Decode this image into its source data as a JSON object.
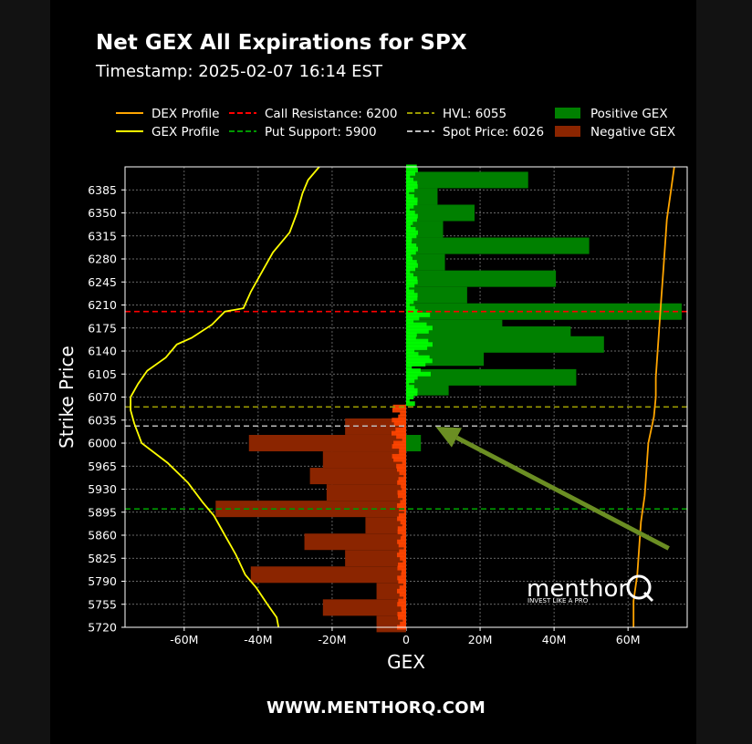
{
  "title": "Net GEX All Expirations for SPX",
  "subtitle": "Timestamp: 2025-02-07 16:14 EST",
  "footer": "WWW.MENTHORQ.COM",
  "watermark": {
    "brand": "menthor",
    "mark": "Q",
    "tagline": "INVEST LIKE A PRO"
  },
  "colors": {
    "dex": "#ffa500",
    "gex": "#ffff00",
    "call_resistance": "#ff0000",
    "put_support": "#009900",
    "hvl": "#999900",
    "spot": "#bbbbbb",
    "positive": "#008000",
    "negative": "#8b2500",
    "positive_bright": "#00ff00",
    "negative_bright": "#ff4500",
    "arrow": "#6b8e23"
  },
  "chart_data": {
    "type": "bar",
    "orientation": "horizontal",
    "xlabel": "GEX",
    "ylabel": "Strike Price",
    "xlim": [
      -76000000,
      76000000
    ],
    "ylim": [
      5720,
      6420
    ],
    "x_ticks": [
      {
        "value": -60000000,
        "label": "-60M"
      },
      {
        "value": -40000000,
        "label": "-40M"
      },
      {
        "value": -20000000,
        "label": "-20M"
      },
      {
        "value": 0,
        "label": "0"
      },
      {
        "value": 20000000,
        "label": "20M"
      },
      {
        "value": 40000000,
        "label": "40M"
      },
      {
        "value": 60000000,
        "label": "60M"
      }
    ],
    "y_ticks": [
      5720,
      5755,
      5790,
      5825,
      5860,
      5895,
      5930,
      5965,
      6000,
      6035,
      6070,
      6105,
      6140,
      6175,
      6210,
      6245,
      6280,
      6315,
      6350,
      6385
    ],
    "grid": true,
    "legend": {
      "placement": "top",
      "entries": [
        {
          "label": "DEX Profile",
          "kind": "line",
          "color": "#ffa500",
          "dash": false
        },
        {
          "label": "Call Resistance: 6200",
          "kind": "line",
          "color": "#ff0000",
          "dash": true
        },
        {
          "label": "HVL: 6055",
          "kind": "line",
          "color": "#999900",
          "dash": true
        },
        {
          "label": "Positive GEX",
          "kind": "patch",
          "color": "#008000"
        },
        {
          "label": "GEX Profile",
          "kind": "line",
          "color": "#ffff00",
          "dash": false
        },
        {
          "label": "Put Support: 5900",
          "kind": "line",
          "color": "#009900",
          "dash": true
        },
        {
          "label": "Spot Price: 6026",
          "kind": "line",
          "color": "#bbbbbb",
          "dash": true
        },
        {
          "label": "Negative GEX",
          "kind": "patch",
          "color": "#8b2500"
        }
      ]
    },
    "levels": [
      {
        "name": "Call Resistance",
        "value": 6200,
        "color": "#ff0000"
      },
      {
        "name": "HVL",
        "value": 6055,
        "color": "#999900"
      },
      {
        "name": "Spot Price",
        "value": 6026,
        "color": "#bbbbbb"
      },
      {
        "name": "Put Support",
        "value": 5900,
        "color": "#009900"
      }
    ],
    "positive_bars": [
      {
        "strike": 6400,
        "value": 33000000
      },
      {
        "strike": 6375,
        "value": 8500000
      },
      {
        "strike": 6350,
        "value": 18500000
      },
      {
        "strike": 6325,
        "value": 10000000
      },
      {
        "strike": 6300,
        "value": 49500000
      },
      {
        "strike": 6275,
        "value": 10500000
      },
      {
        "strike": 6250,
        "value": 40500000
      },
      {
        "strike": 6225,
        "value": 16500000
      },
      {
        "strike": 6200,
        "value": 74500000
      },
      {
        "strike": 6175,
        "value": 26000000
      },
      {
        "strike": 6165,
        "value": 44500000
      },
      {
        "strike": 6150,
        "value": 53500000
      },
      {
        "strike": 6130,
        "value": 21000000
      },
      {
        "strike": 6100,
        "value": 46000000
      },
      {
        "strike": 6085,
        "value": 11500000
      },
      {
        "strike": 6000,
        "value": 4000000
      }
    ],
    "negative_bars": [
      {
        "strike": 6025,
        "value": -16500000
      },
      {
        "strike": 6000,
        "value": -42500000
      },
      {
        "strike": 5975,
        "value": -22500000
      },
      {
        "strike": 5950,
        "value": -26000000
      },
      {
        "strike": 5925,
        "value": -21500000
      },
      {
        "strike": 5900,
        "value": -51500000
      },
      {
        "strike": 5875,
        "value": -11000000
      },
      {
        "strike": 5850,
        "value": -27500000
      },
      {
        "strike": 5825,
        "value": -16500000
      },
      {
        "strike": 5800,
        "value": -42000000
      },
      {
        "strike": 5775,
        "value": -8000000
      },
      {
        "strike": 5750,
        "value": -22500000
      },
      {
        "strike": 5725,
        "value": -8000000
      }
    ],
    "gex_profile": [
      {
        "strike": 6420,
        "value": -23500000
      },
      {
        "strike": 6400,
        "value": -26500000
      },
      {
        "strike": 6380,
        "value": -28000000
      },
      {
        "strike": 6350,
        "value": -29500000
      },
      {
        "strike": 6320,
        "value": -31500000
      },
      {
        "strike": 6290,
        "value": -36000000
      },
      {
        "strike": 6260,
        "value": -39000000
      },
      {
        "strike": 6230,
        "value": -42000000
      },
      {
        "strike": 6205,
        "value": -44000000
      },
      {
        "strike": 6200,
        "value": -49000000
      },
      {
        "strike": 6180,
        "value": -52500000
      },
      {
        "strike": 6160,
        "value": -58000000
      },
      {
        "strike": 6150,
        "value": -62000000
      },
      {
        "strike": 6130,
        "value": -65000000
      },
      {
        "strike": 6110,
        "value": -70000000
      },
      {
        "strike": 6090,
        "value": -72500000
      },
      {
        "strike": 6070,
        "value": -74500000
      },
      {
        "strike": 6050,
        "value": -74500000
      },
      {
        "strike": 6030,
        "value": -73500000
      },
      {
        "strike": 6000,
        "value": -71500000
      },
      {
        "strike": 5970,
        "value": -64500000
      },
      {
        "strike": 5940,
        "value": -59000000
      },
      {
        "strike": 5910,
        "value": -55000000
      },
      {
        "strike": 5890,
        "value": -52000000
      },
      {
        "strike": 5860,
        "value": -49000000
      },
      {
        "strike": 5830,
        "value": -46000000
      },
      {
        "strike": 5800,
        "value": -43500000
      },
      {
        "strike": 5780,
        "value": -40500000
      },
      {
        "strike": 5755,
        "value": -37500000
      },
      {
        "strike": 5735,
        "value": -35000000
      },
      {
        "strike": 5720,
        "value": -34500000
      }
    ],
    "dex_profile": [
      {
        "strike": 6420,
        "value": 72500000
      },
      {
        "strike": 6380,
        "value": 71500000
      },
      {
        "strike": 6340,
        "value": 70500000
      },
      {
        "strike": 6300,
        "value": 70000000
      },
      {
        "strike": 6260,
        "value": 69500000
      },
      {
        "strike": 6220,
        "value": 69000000
      },
      {
        "strike": 6180,
        "value": 68500000
      },
      {
        "strike": 6140,
        "value": 68000000
      },
      {
        "strike": 6100,
        "value": 67500000
      },
      {
        "strike": 6070,
        "value": 67500000
      },
      {
        "strike": 6040,
        "value": 67000000
      },
      {
        "strike": 6000,
        "value": 65500000
      },
      {
        "strike": 5960,
        "value": 65000000
      },
      {
        "strike": 5920,
        "value": 64500000
      },
      {
        "strike": 5880,
        "value": 63500000
      },
      {
        "strike": 5840,
        "value": 63000000
      },
      {
        "strike": 5800,
        "value": 62500000
      },
      {
        "strike": 5760,
        "value": 61500000
      },
      {
        "strike": 5720,
        "value": 61500000
      }
    ],
    "annotation_arrow": {
      "from": {
        "x": 71000000,
        "strike": 5840
      },
      "to": {
        "x": 8000000,
        "strike": 6025
      }
    }
  }
}
